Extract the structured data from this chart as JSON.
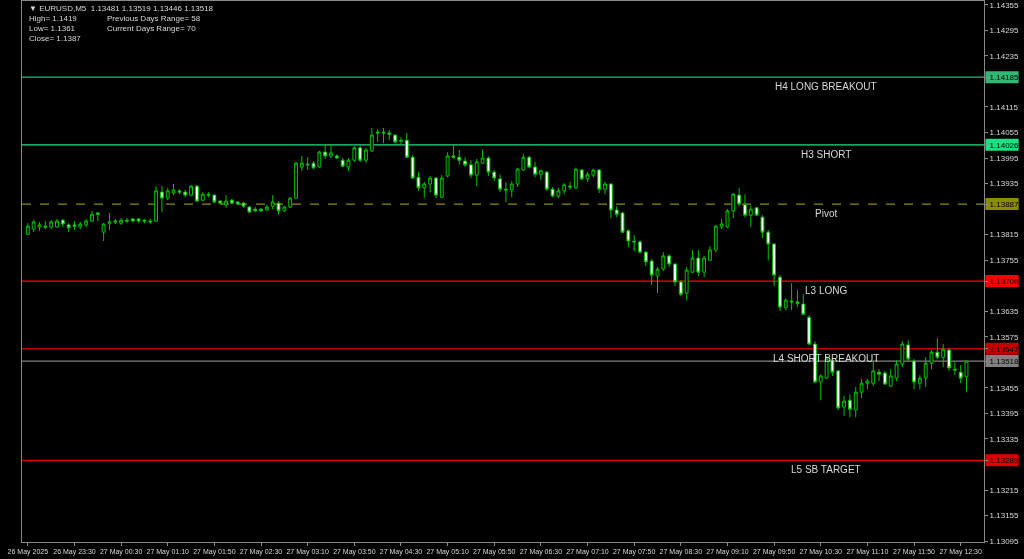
{
  "chart_data": {
    "type": "candlestick",
    "title": "▼ EURUSD,M5  1.13481 1.13519 1.13446 1.13518",
    "annotations": [
      "High= 1.1419",
      "Previous Days Range= 58",
      "Low= 1.1361",
      "Current Days Range= 70",
      "Close= 1.1387"
    ],
    "categories": [
      "26 May 2025",
      null,
      null,
      null,
      null,
      null,
      null,
      null,
      "26 May 23:30",
      null,
      null,
      null,
      null,
      null,
      null,
      null,
      "27 May 00:30",
      null,
      null,
      null,
      null,
      null,
      null,
      null,
      "27 May 01:10",
      null,
      null,
      null,
      null,
      null,
      null,
      null,
      "27 May 01:50",
      null,
      null,
      null,
      null,
      null,
      null,
      null,
      "27 May 02:30",
      null,
      null,
      null,
      null,
      null,
      null,
      null,
      "27 May 03:10",
      null,
      null,
      null,
      null,
      null,
      null,
      null,
      "27 May 03:50",
      null,
      null,
      null,
      null,
      null,
      null,
      null,
      "27 May 04:30",
      null,
      null,
      null,
      null,
      null,
      null,
      null,
      "27 May 05:10",
      null,
      null,
      null,
      null,
      null,
      null,
      null,
      "27 May 05:50",
      null,
      null,
      null,
      null,
      null,
      null,
      null,
      "27 May 06:30",
      null,
      null,
      null,
      null,
      null,
      null,
      null,
      "27 May 07:10",
      null,
      null,
      null,
      null,
      null,
      null,
      null,
      "27 May 07:50",
      null,
      null,
      null,
      null,
      null,
      null,
      null,
      "27 May 08:30",
      null,
      null,
      null,
      null,
      null,
      null,
      null,
      "27 May 09:10",
      null,
      null,
      null,
      null,
      null,
      null,
      null,
      "27 May 09:50",
      null,
      null,
      null,
      null,
      null,
      null,
      null,
      "27 May 10:30",
      null,
      null,
      null,
      null,
      null,
      null,
      null,
      "27 May 11:10",
      null,
      null,
      null,
      null,
      null,
      null,
      null,
      "27 May 11:50",
      null,
      null,
      null,
      null,
      null,
      null,
      null,
      "27 May 12:30",
      null
    ],
    "color": "#00c000",
    "ohlc": [
      [
        1.13816,
        1.13842,
        1.13814,
        1.13835
      ],
      [
        1.13828,
        1.13849,
        1.13821,
        1.13845
      ],
      [
        1.13833,
        1.13845,
        1.13824,
        1.13838
      ],
      [
        1.13835,
        1.13847,
        1.13828,
        1.13833
      ],
      [
        1.13833,
        1.13849,
        1.13828,
        1.13845
      ],
      [
        1.13833,
        1.13852,
        1.13831,
        1.13847
      ],
      [
        1.13849,
        1.13852,
        1.13833,
        1.1384
      ],
      [
        1.13838,
        1.13842,
        1.13821,
        1.13831
      ],
      [
        1.13838,
        1.13847,
        1.13826,
        1.13835
      ],
      [
        1.13833,
        1.13845,
        1.13828,
        1.1384
      ],
      [
        1.13838,
        1.13852,
        1.13833,
        1.13847
      ],
      [
        1.13847,
        1.13871,
        1.13845,
        1.13863
      ],
      [
        1.13866,
        1.13868,
        1.13847,
        1.13863
      ],
      [
        1.13821,
        1.13842,
        1.138,
        1.1384
      ],
      [
        1.13842,
        1.13866,
        1.13826,
        1.13845
      ],
      [
        1.13847,
        1.13852,
        1.1384,
        1.13845
      ],
      [
        1.13842,
        1.13854,
        1.13838,
        1.13849
      ],
      [
        1.13849,
        1.13854,
        1.13842,
        1.13847
      ],
      [
        1.13852,
        1.13854,
        1.13845,
        1.13847
      ],
      [
        1.13852,
        1.13854,
        1.13842,
        1.13847
      ],
      [
        1.13849,
        1.13852,
        1.13842,
        1.13847
      ],
      [
        1.13847,
        1.13852,
        1.1384,
        1.13845
      ],
      [
        1.13847,
        1.13929,
        1.13845,
        1.13918
      ],
      [
        1.13915,
        1.13929,
        1.13868,
        1.13901
      ],
      [
        1.13901,
        1.13925,
        1.13896,
        1.13918
      ],
      [
        1.13913,
        1.13934,
        1.13908,
        1.1392
      ],
      [
        1.13918,
        1.13922,
        1.1391,
        1.13915
      ],
      [
        1.13915,
        1.1392,
        1.13903,
        1.13908
      ],
      [
        1.13908,
        1.13932,
        1.13906,
        1.13929
      ],
      [
        1.13929,
        1.13932,
        1.13892,
        1.13894
      ],
      [
        1.13896,
        1.13915,
        1.13894,
        1.1391
      ],
      [
        1.1391,
        1.13915,
        1.13903,
        1.13908
      ],
      [
        1.13908,
        1.1391,
        1.13889,
        1.13892
      ],
      [
        1.13894,
        1.13896,
        1.13887,
        1.13889
      ],
      [
        1.13885,
        1.13908,
        1.13878,
        1.13894
      ],
      [
        1.13896,
        1.13899,
        1.13887,
        1.13889
      ],
      [
        1.13892,
        1.13894,
        1.13885,
        1.13887
      ],
      [
        1.13889,
        1.13892,
        1.13878,
        1.13882
      ],
      [
        1.1388,
        1.13882,
        1.13866,
        1.13868
      ],
      [
        1.13875,
        1.1388,
        1.13868,
        1.13871
      ],
      [
        1.13875,
        1.13878,
        1.13868,
        1.13871
      ],
      [
        1.13873,
        1.13885,
        1.13871,
        1.1388
      ],
      [
        1.13882,
        1.13908,
        1.13875,
        1.13892
      ],
      [
        1.13889,
        1.13894,
        1.13863,
        1.13871
      ],
      [
        1.13871,
        1.13882,
        1.13868,
        1.1388
      ],
      [
        1.1388,
        1.13903,
        1.13878,
        1.13901
      ],
      [
        1.13901,
        1.13986,
        1.13899,
        1.13983
      ],
      [
        1.13974,
        1.14,
        1.13965,
        1.13983
      ],
      [
        1.13981,
        1.13997,
        1.13967,
        1.13979
      ],
      [
        1.13983,
        1.13988,
        1.13969,
        1.13972
      ],
      [
        1.13974,
        1.14012,
        1.13972,
        1.14009
      ],
      [
        1.14009,
        1.14026,
        1.13993,
        1.14
      ],
      [
        1.14,
        1.14026,
        1.13995,
        1.14007
      ],
      [
        1.14,
        1.14004,
        1.13993,
        1.13995
      ],
      [
        1.1399,
        1.13995,
        1.13974,
        1.13976
      ],
      [
        1.13974,
        1.13995,
        1.13965,
        1.1399
      ],
      [
        1.1399,
        1.14023,
        1.13986,
        1.14019
      ],
      [
        1.14019,
        1.14023,
        1.13986,
        1.1399
      ],
      [
        1.1399,
        1.14019,
        1.13983,
        1.14014
      ],
      [
        1.14012,
        1.14066,
        1.14009,
        1.14049
      ],
      [
        1.14056,
        1.14063,
        1.14033,
        1.14054
      ],
      [
        1.14056,
        1.14066,
        1.1403,
        1.14054
      ],
      [
        1.14054,
        1.14061,
        1.14037,
        1.14051
      ],
      [
        1.14049,
        1.14051,
        1.1403,
        1.14033
      ],
      [
        1.14037,
        1.14044,
        1.14028,
        1.14035
      ],
      [
        1.14037,
        1.14054,
        1.13995,
        1.13997
      ],
      [
        1.13997,
        1.14002,
        1.13946,
        1.13948
      ],
      [
        1.1395,
        1.13962,
        1.13918,
        1.13925
      ],
      [
        1.13925,
        1.13939,
        1.13901,
        1.13934
      ],
      [
        1.13934,
        1.13953,
        1.13915,
        1.13948
      ],
      [
        1.13948,
        1.1395,
        1.13901,
        1.13908
      ],
      [
        1.13903,
        1.13955,
        1.13901,
        1.13948
      ],
      [
        1.13953,
        1.14009,
        1.1395,
        1.14
      ],
      [
        1.14,
        1.14028,
        1.13993,
        1.13997
      ],
      [
        1.13997,
        1.14014,
        1.13979,
        1.1399
      ],
      [
        1.13988,
        1.13997,
        1.13974,
        1.13979
      ],
      [
        1.13979,
        1.1399,
        1.13948,
        1.13955
      ],
      [
        1.13955,
        1.13993,
        1.13929,
        1.13986
      ],
      [
        1.13983,
        1.14016,
        1.13981,
        1.13995
      ],
      [
        1.13995,
        1.14,
        1.13953,
        1.13962
      ],
      [
        1.13962,
        1.13967,
        1.13941,
        1.13948
      ],
      [
        1.13946,
        1.13957,
        1.13915,
        1.13922
      ],
      [
        1.13922,
        1.13939,
        1.13892,
        1.1392
      ],
      [
        1.1392,
        1.13941,
        1.13903,
        1.13934
      ],
      [
        1.13934,
        1.13972,
        1.13927,
        1.13969
      ],
      [
        1.13967,
        1.14004,
        1.13965,
        1.13997
      ],
      [
        1.13997,
        1.14,
        1.13972,
        1.13974
      ],
      [
        1.13974,
        1.13986,
        1.1395,
        1.13957
      ],
      [
        1.13957,
        1.13969,
        1.13943,
        1.13965
      ],
      [
        1.13962,
        1.13965,
        1.13918,
        1.13922
      ],
      [
        1.13922,
        1.13927,
        1.13903,
        1.13906
      ],
      [
        1.13906,
        1.13925,
        1.13901,
        1.13918
      ],
      [
        1.13918,
        1.13936,
        1.1391,
        1.13932
      ],
      [
        1.13929,
        1.13939,
        1.1392,
        1.13927
      ],
      [
        1.13925,
        1.13972,
        1.13922,
        1.13969
      ],
      [
        1.13967,
        1.13969,
        1.13943,
        1.13946
      ],
      [
        1.13946,
        1.13962,
        1.13939,
        1.13957
      ],
      [
        1.13955,
        1.13969,
        1.1395,
        1.13967
      ],
      [
        1.13967,
        1.13969,
        1.13913,
        1.13922
      ],
      [
        1.13922,
        1.13939,
        1.1391,
        1.13934
      ],
      [
        1.13934,
        1.13936,
        1.13854,
        1.13873
      ],
      [
        1.13873,
        1.13882,
        1.13856,
        1.13863
      ],
      [
        1.13866,
        1.13868,
        1.13819,
        1.13821
      ],
      [
        1.13824,
        1.13828,
        1.13786,
        1.138
      ],
      [
        1.138,
        1.13814,
        1.13777,
        1.13798
      ],
      [
        1.13798,
        1.13802,
        1.13772,
        1.13774
      ],
      [
        1.13774,
        1.13777,
        1.13741,
        1.13751
      ],
      [
        1.13753,
        1.13758,
        1.13697,
        1.1372
      ],
      [
        1.13718,
        1.13739,
        1.13678,
        1.13734
      ],
      [
        1.13734,
        1.13774,
        1.1373,
        1.13765
      ],
      [
        1.13765,
        1.13769,
        1.13739,
        1.13746
      ],
      [
        1.13746,
        1.13748,
        1.13694,
        1.13704
      ],
      [
        1.13704,
        1.13708,
        1.13671,
        1.13675
      ],
      [
        1.13678,
        1.13739,
        1.13661,
        1.13732
      ],
      [
        1.13727,
        1.13779,
        1.13725,
        1.1376
      ],
      [
        1.1376,
        1.13779,
        1.13718,
        1.13727
      ],
      [
        1.13727,
        1.13765,
        1.13715,
        1.1376
      ],
      [
        1.13755,
        1.13788,
        1.13753,
        1.13779
      ],
      [
        1.13779,
        1.13838,
        1.13774,
        1.13835
      ],
      [
        1.13833,
        1.13852,
        1.13828,
        1.1384
      ],
      [
        1.13833,
        1.13875,
        1.13831,
        1.13871
      ],
      [
        1.13871,
        1.13913,
        1.13854,
        1.1391
      ],
      [
        1.13908,
        1.13925,
        1.13882,
        1.13887
      ],
      [
        1.13885,
        1.1391,
        1.13856,
        1.13861
      ],
      [
        1.13861,
        1.13882,
        1.13833,
        1.13875
      ],
      [
        1.13878,
        1.1388,
        1.13859,
        1.13861
      ],
      [
        1.13856,
        1.13861,
        1.13807,
        1.13821
      ],
      [
        1.13821,
        1.13826,
        1.13755,
        1.13793
      ],
      [
        1.13793,
        1.13795,
        1.13694,
        1.1372
      ],
      [
        1.13715,
        1.1372,
        1.13636,
        1.13645
      ],
      [
        1.13643,
        1.13666,
        1.13638,
        1.13661
      ],
      [
        1.13659,
        1.13701,
        1.13638,
        1.13657
      ],
      [
        1.13657,
        1.13685,
        1.13645,
        1.13654
      ],
      [
        1.13652,
        1.13675,
        1.13626,
        1.13628
      ],
      [
        1.13621,
        1.13626,
        1.13556,
        1.13558
      ],
      [
        1.13558,
        1.13565,
        1.13466,
        1.13469
      ],
      [
        1.13469,
        1.13487,
        1.13426,
        1.13483
      ],
      [
        1.13478,
        1.1353,
        1.13476,
        1.13523
      ],
      [
        1.1352,
        1.13523,
        1.13483,
        1.13492
      ],
      [
        1.13495,
        1.13497,
        1.13403,
        1.13408
      ],
      [
        1.1341,
        1.13436,
        1.13389,
        1.13424
      ],
      [
        1.13426,
        1.1344,
        1.13386,
        1.13405
      ],
      [
        1.13403,
        1.13457,
        1.13386,
        1.13445
      ],
      [
        1.13445,
        1.13476,
        1.13431,
        1.13466
      ],
      [
        1.13466,
        1.13476,
        1.13452,
        1.13471
      ],
      [
        1.13466,
        1.1352,
        1.13459,
        1.13495
      ],
      [
        1.13492,
        1.13499,
        1.13471,
        1.13487
      ],
      [
        1.1349,
        1.13495,
        1.13462,
        1.13464
      ],
      [
        1.13459,
        1.13499,
        1.13457,
        1.13483
      ],
      [
        1.13478,
        1.1352,
        1.13471,
        1.13511
      ],
      [
        1.13511,
        1.13565,
        1.13504,
        1.13558
      ],
      [
        1.13556,
        1.13567,
        1.13518,
        1.13523
      ],
      [
        1.13518,
        1.13523,
        1.13452,
        1.13469
      ],
      [
        1.13466,
        1.13485,
        1.13452,
        1.13478
      ],
      [
        1.13478,
        1.13527,
        1.13457,
        1.13513
      ],
      [
        1.13513,
        1.13544,
        1.13499,
        1.13539
      ],
      [
        1.13539,
        1.13572,
        1.13523,
        1.13527
      ],
      [
        1.13527,
        1.13558,
        1.13504,
        1.13546
      ],
      [
        1.13544,
        1.13549,
        1.13495,
        1.13502
      ],
      [
        1.13499,
        1.13516,
        1.13485,
        1.13497
      ],
      [
        1.13492,
        1.13509,
        1.13466,
        1.13478
      ],
      [
        1.13481,
        1.13519,
        1.13446,
        1.13518
      ]
    ],
    "ylim": [
      1.13093,
      1.14364
    ],
    "yticks": [
      1.14355,
      1.14295,
      1.14235,
      1.14185,
      1.14115,
      1.14055,
      1.14026,
      1.13995,
      1.13935,
      1.13887,
      1.13815,
      1.13755,
      1.13706,
      1.13635,
      1.13575,
      1.13547,
      1.13518,
      1.13455,
      1.13395,
      1.13335,
      1.13285,
      1.13215,
      1.13155,
      1.13095
    ],
    "ref_lines": [
      {
        "axis": "y",
        "value": 1.14185,
        "label": "H4 LONG BREAKOUT",
        "color": "#2eb872",
        "line_style": "solid"
      },
      {
        "axis": "y",
        "value": 1.14026,
        "label": "H3 SHORT",
        "color": "#1ee082",
        "line_style": "solid"
      },
      {
        "axis": "y",
        "value": 1.13887,
        "label": "Pivot",
        "color": "#8c8c00",
        "line_style": "dashed"
      },
      {
        "axis": "y",
        "value": 1.13706,
        "label": "L3 LONG",
        "color": "#ff0000",
        "line_style": "solid"
      },
      {
        "axis": "y",
        "value": 1.13547,
        "label": "L4 SHORT BREAKOUT",
        "color": "#c00000",
        "line_style": "solid"
      },
      {
        "axis": "y",
        "value": 1.13518,
        "color": "#808080",
        "line_style": "solid"
      },
      {
        "axis": "y",
        "value": 1.13285,
        "label": "L5 SB TARGET",
        "color": "#e00000",
        "line_style": "solid"
      }
    ],
    "grid": false
  }
}
